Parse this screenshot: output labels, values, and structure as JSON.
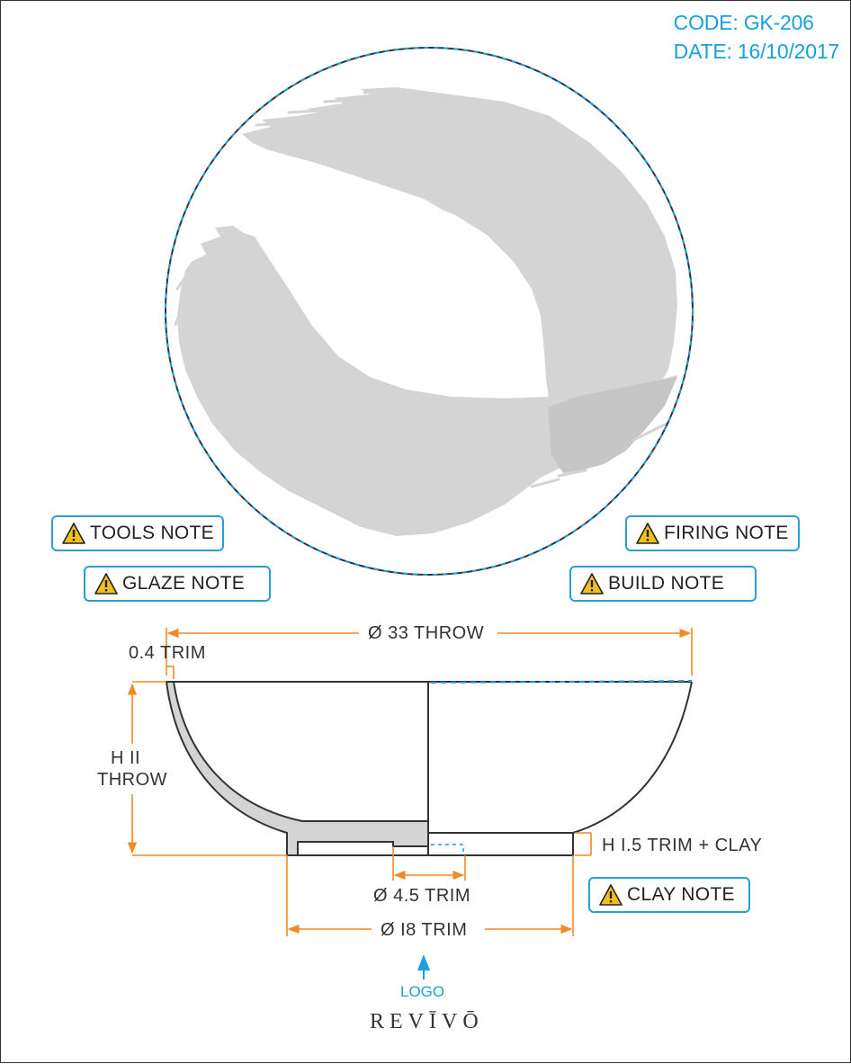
{
  "header": {
    "code": "CODE: GK-206",
    "date": "DATE: 16/10/2017"
  },
  "notes": {
    "tools": "TOOLS NOTE",
    "glaze": "GLAZE NOTE",
    "firing": "FIRING NOTE",
    "build": "BUILD NOTE",
    "clay": "CLAY NOTE"
  },
  "dimensions": {
    "diameter_throw": "Ø 33 THROW",
    "rim_trim": "0.4 TRIM",
    "height_throw_line1": "H II",
    "height_throw_line2": "THROW",
    "foot_height": "H I.5 TRIM + CLAY",
    "inner_foot": "Ø 4.5 TRIM",
    "foot_diameter": "Ø I8 TRIM"
  },
  "logo": {
    "label": "LOGO",
    "brand": "REVĪVŌ"
  },
  "colors": {
    "accent_blue": "#1aa0dc",
    "dimension_orange": "#f08a24",
    "glaze_gray": "#d4d4d4",
    "outline": "#333333"
  },
  "icons": {
    "note_icon": "warning-icon",
    "logo_pointer": "arrow-up-icon"
  }
}
